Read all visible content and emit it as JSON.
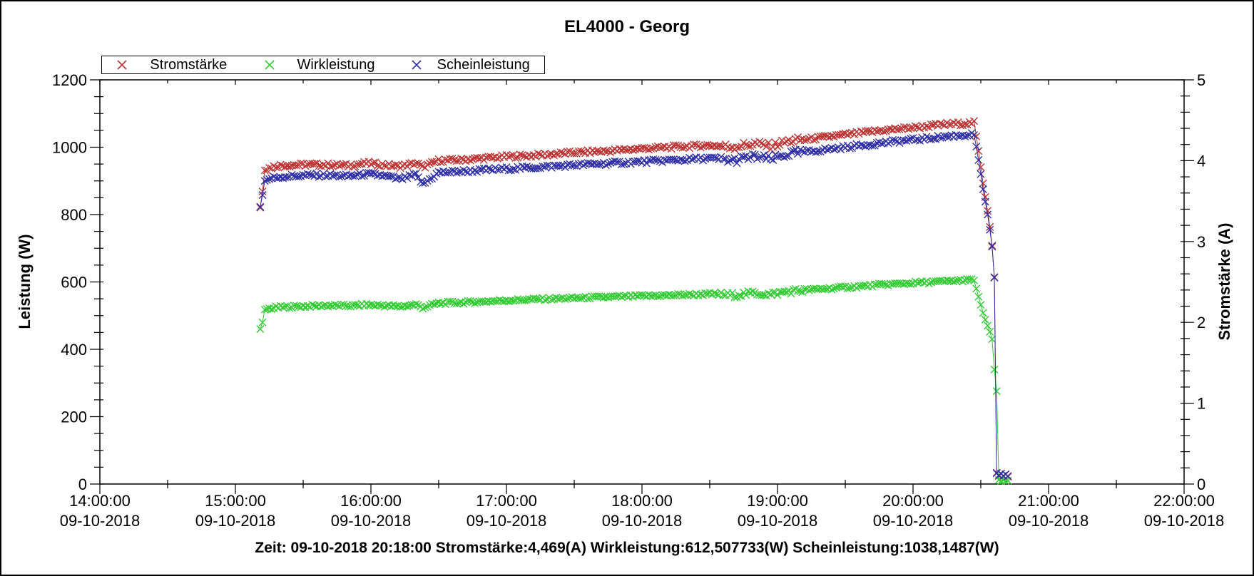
{
  "figure": {
    "title": "EL4000 - Georg"
  },
  "legend": {
    "entries": [
      {
        "label": "Stromstärke",
        "color": "#bf3434",
        "marker": "x"
      },
      {
        "label": "Wirkleistung",
        "color": "#33cc33",
        "marker": "x"
      },
      {
        "label": "Scheinleistung",
        "color": "#3030a8",
        "marker": "x"
      }
    ]
  },
  "status_bar": {
    "text": "Zeit: 09-10-2018 20:18:00 Stromstärke:4,469(A) Wirkleistung:612,507733(W) Scheinleistung:1038,1487(W)",
    "zeit": "09-10-2018 20:18:00",
    "stromstaerke": "4,469(A)",
    "wirkleistung": "612,507733(W)",
    "scheinleistung": "1038,1487(W)"
  },
  "chart_data": {
    "type": "scatter",
    "title": "EL4000 - Georg",
    "marker": "x",
    "x_axis": {
      "kind": "time",
      "t0": "09-10-2018 14:00:00",
      "range_minutes": [
        0,
        480
      ],
      "tick_times": [
        "14:00:00",
        "15:00:00",
        "16:00:00",
        "17:00:00",
        "18:00:00",
        "19:00:00",
        "20:00:00",
        "21:00:00",
        "22:00:00"
      ],
      "tick_date": "09-10-2018",
      "minor_tick_minutes": 30
    },
    "y_left": {
      "label": "Leistung (W)",
      "min": 0,
      "max": 1200,
      "major_step": 200,
      "minor_step": 50,
      "tick_labels": [
        "0",
        "200",
        "400",
        "600",
        "800",
        "1000",
        "1200"
      ]
    },
    "y_right": {
      "label": "Stromstärke (A)",
      "min": 0,
      "max": 5,
      "major_step": 1,
      "minor_step": 0.2,
      "tick_labels": [
        "0",
        "1",
        "2",
        "3",
        "4",
        "5"
      ]
    },
    "legend_position": "top-left",
    "grid": false,
    "series": [
      {
        "name": "Stromstärke",
        "unit": "A",
        "axis": "right",
        "color": "#bf3434",
        "sample_interval_min": 1,
        "jitter": 0.022,
        "points": [
          [
            71,
            3.42
          ],
          [
            72,
            3.62
          ],
          [
            73,
            3.88
          ],
          [
            76,
            3.92
          ],
          [
            80,
            3.94
          ],
          [
            90,
            3.95
          ],
          [
            100,
            3.95
          ],
          [
            110,
            3.94
          ],
          [
            118,
            3.97
          ],
          [
            125,
            3.95
          ],
          [
            133,
            3.93
          ],
          [
            140,
            3.97
          ],
          [
            143,
            3.92
          ],
          [
            150,
            4.0
          ],
          [
            160,
            4.01
          ],
          [
            170,
            4.03
          ],
          [
            180,
            4.05
          ],
          [
            195,
            4.07
          ],
          [
            210,
            4.1
          ],
          [
            225,
            4.12
          ],
          [
            240,
            4.15
          ],
          [
            255,
            4.17
          ],
          [
            270,
            4.19
          ],
          [
            280,
            4.17
          ],
          [
            290,
            4.21
          ],
          [
            297,
            4.18
          ],
          [
            305,
            4.24
          ],
          [
            315,
            4.27
          ],
          [
            330,
            4.32
          ],
          [
            345,
            4.37
          ],
          [
            360,
            4.41
          ],
          [
            375,
            4.45
          ],
          [
            383,
            4.46
          ],
          [
            387,
            4.47
          ],
          [
            388,
            4.3
          ],
          [
            389,
            4.12
          ],
          [
            390,
            3.92
          ],
          [
            391,
            3.72
          ],
          [
            392,
            3.55
          ],
          [
            393,
            3.38
          ],
          [
            394,
            3.18
          ],
          [
            395,
            2.95
          ],
          [
            396,
            2.56
          ],
          [
            397,
            0.14
          ],
          [
            398,
            0.1
          ],
          [
            399,
            0.13
          ],
          [
            400,
            0.1
          ],
          [
            401,
            0.12
          ],
          [
            402,
            0.09
          ]
        ]
      },
      {
        "name": "Wirkleistung",
        "unit": "W",
        "axis": "left",
        "color": "#33cc33",
        "sample_interval_min": 1,
        "jitter": 4.0,
        "points": [
          [
            71,
            460
          ],
          [
            72,
            480
          ],
          [
            73,
            518
          ],
          [
            76,
            522
          ],
          [
            80,
            525
          ],
          [
            90,
            528
          ],
          [
            100,
            530
          ],
          [
            110,
            529
          ],
          [
            118,
            532
          ],
          [
            125,
            530
          ],
          [
            133,
            527
          ],
          [
            140,
            533
          ],
          [
            143,
            524
          ],
          [
            150,
            537
          ],
          [
            160,
            539
          ],
          [
            170,
            542
          ],
          [
            180,
            545
          ],
          [
            195,
            549
          ],
          [
            210,
            552
          ],
          [
            225,
            555
          ],
          [
            240,
            558
          ],
          [
            255,
            561
          ],
          [
            270,
            564
          ],
          [
            280,
            561
          ],
          [
            290,
            567
          ],
          [
            297,
            563
          ],
          [
            305,
            572
          ],
          [
            315,
            577
          ],
          [
            330,
            584
          ],
          [
            345,
            591
          ],
          [
            360,
            597
          ],
          [
            375,
            602
          ],
          [
            383,
            605
          ],
          [
            387,
            606
          ],
          [
            388,
            580
          ],
          [
            389,
            556
          ],
          [
            390,
            532
          ],
          [
            391,
            508
          ],
          [
            392,
            488
          ],
          [
            393,
            470
          ],
          [
            394,
            452
          ],
          [
            395,
            430
          ],
          [
            396,
            340
          ],
          [
            397,
            276
          ],
          [
            398,
            12
          ],
          [
            399,
            9
          ],
          [
            400,
            11
          ],
          [
            401,
            9
          ],
          [
            402,
            10
          ]
        ]
      },
      {
        "name": "Scheinleistung",
        "unit": "W",
        "axis": "left",
        "color": "#3030a8",
        "sample_interval_min": 1,
        "jitter": 5.5,
        "points": [
          [
            71,
            823
          ],
          [
            72,
            858
          ],
          [
            73,
            900
          ],
          [
            76,
            908
          ],
          [
            80,
            912
          ],
          [
            90,
            916
          ],
          [
            100,
            917
          ],
          [
            110,
            914
          ],
          [
            118,
            920
          ],
          [
            125,
            916
          ],
          [
            133,
            905
          ],
          [
            140,
            918
          ],
          [
            143,
            890
          ],
          [
            150,
            925
          ],
          [
            160,
            928
          ],
          [
            170,
            932
          ],
          [
            180,
            936
          ],
          [
            195,
            941
          ],
          [
            210,
            947
          ],
          [
            225,
            952
          ],
          [
            240,
            957
          ],
          [
            255,
            962
          ],
          [
            270,
            967
          ],
          [
            280,
            960
          ],
          [
            290,
            972
          ],
          [
            297,
            964
          ],
          [
            305,
            980
          ],
          [
            315,
            988
          ],
          [
            330,
            1000
          ],
          [
            345,
            1012
          ],
          [
            360,
            1022
          ],
          [
            375,
            1032
          ],
          [
            383,
            1036
          ],
          [
            387,
            1038
          ],
          [
            388,
            1002
          ],
          [
            389,
            962
          ],
          [
            390,
            920
          ],
          [
            391,
            875
          ],
          [
            392,
            838
          ],
          [
            393,
            800
          ],
          [
            394,
            755
          ],
          [
            395,
            705
          ],
          [
            396,
            613
          ],
          [
            397,
            32
          ],
          [
            398,
            26
          ],
          [
            399,
            30
          ],
          [
            400,
            25
          ],
          [
            401,
            29
          ],
          [
            402,
            24
          ]
        ]
      }
    ],
    "noisy_window_minutes": [
      275,
      312
    ]
  }
}
